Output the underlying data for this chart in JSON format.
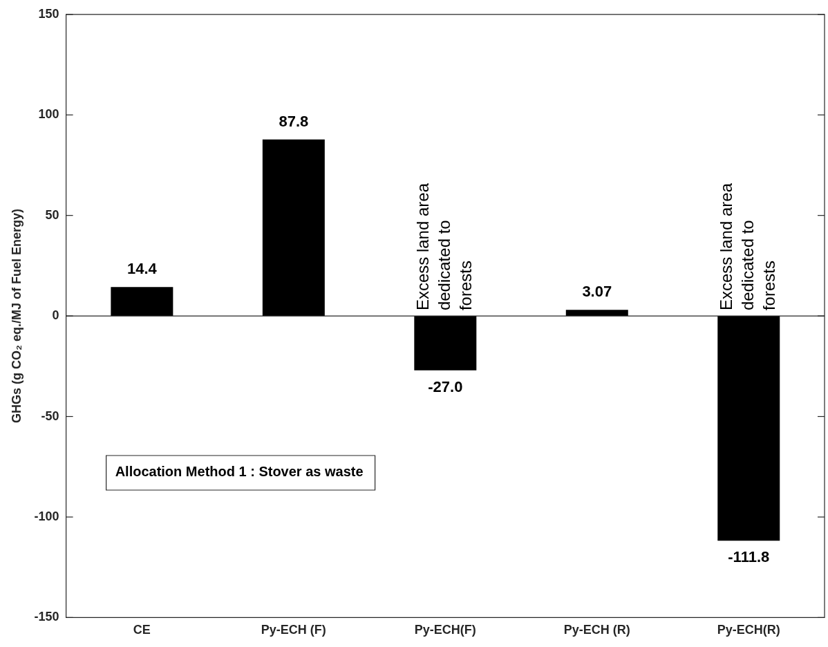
{
  "chart_data": {
    "type": "bar",
    "ylabel": "GHGs (g CO₂ eq./MJ of Fuel Energy)",
    "categories": [
      "CE",
      "Py-ECH (F)",
      "Py-ECH(F)",
      "Py-ECH (R)",
      "Py-ECH(R)"
    ],
    "values": [
      14.4,
      87.8,
      -27.0,
      3.07,
      -111.8
    ],
    "value_labels": [
      "14.4",
      "87.8",
      "-27.0",
      "3.07",
      "-111.8"
    ],
    "color": "#000000",
    "ylim": [
      -150,
      150
    ],
    "yticks": [
      -150,
      -100,
      -50,
      0,
      50,
      100,
      150
    ],
    "grid": false,
    "legend": false,
    "ref_lines": [
      {
        "axis": "y",
        "value": 0,
        "color": "#262626"
      }
    ],
    "annotations": [
      {
        "text": "Excess land area dedicated to forests",
        "x": "Py-ECH(F)",
        "y": 0
      },
      {
        "text": "Excess land area dedicated to forests",
        "x": "Py-ECH(R)",
        "y": 0
      },
      "Allocation Method 1 : Stover as waste"
    ]
  }
}
